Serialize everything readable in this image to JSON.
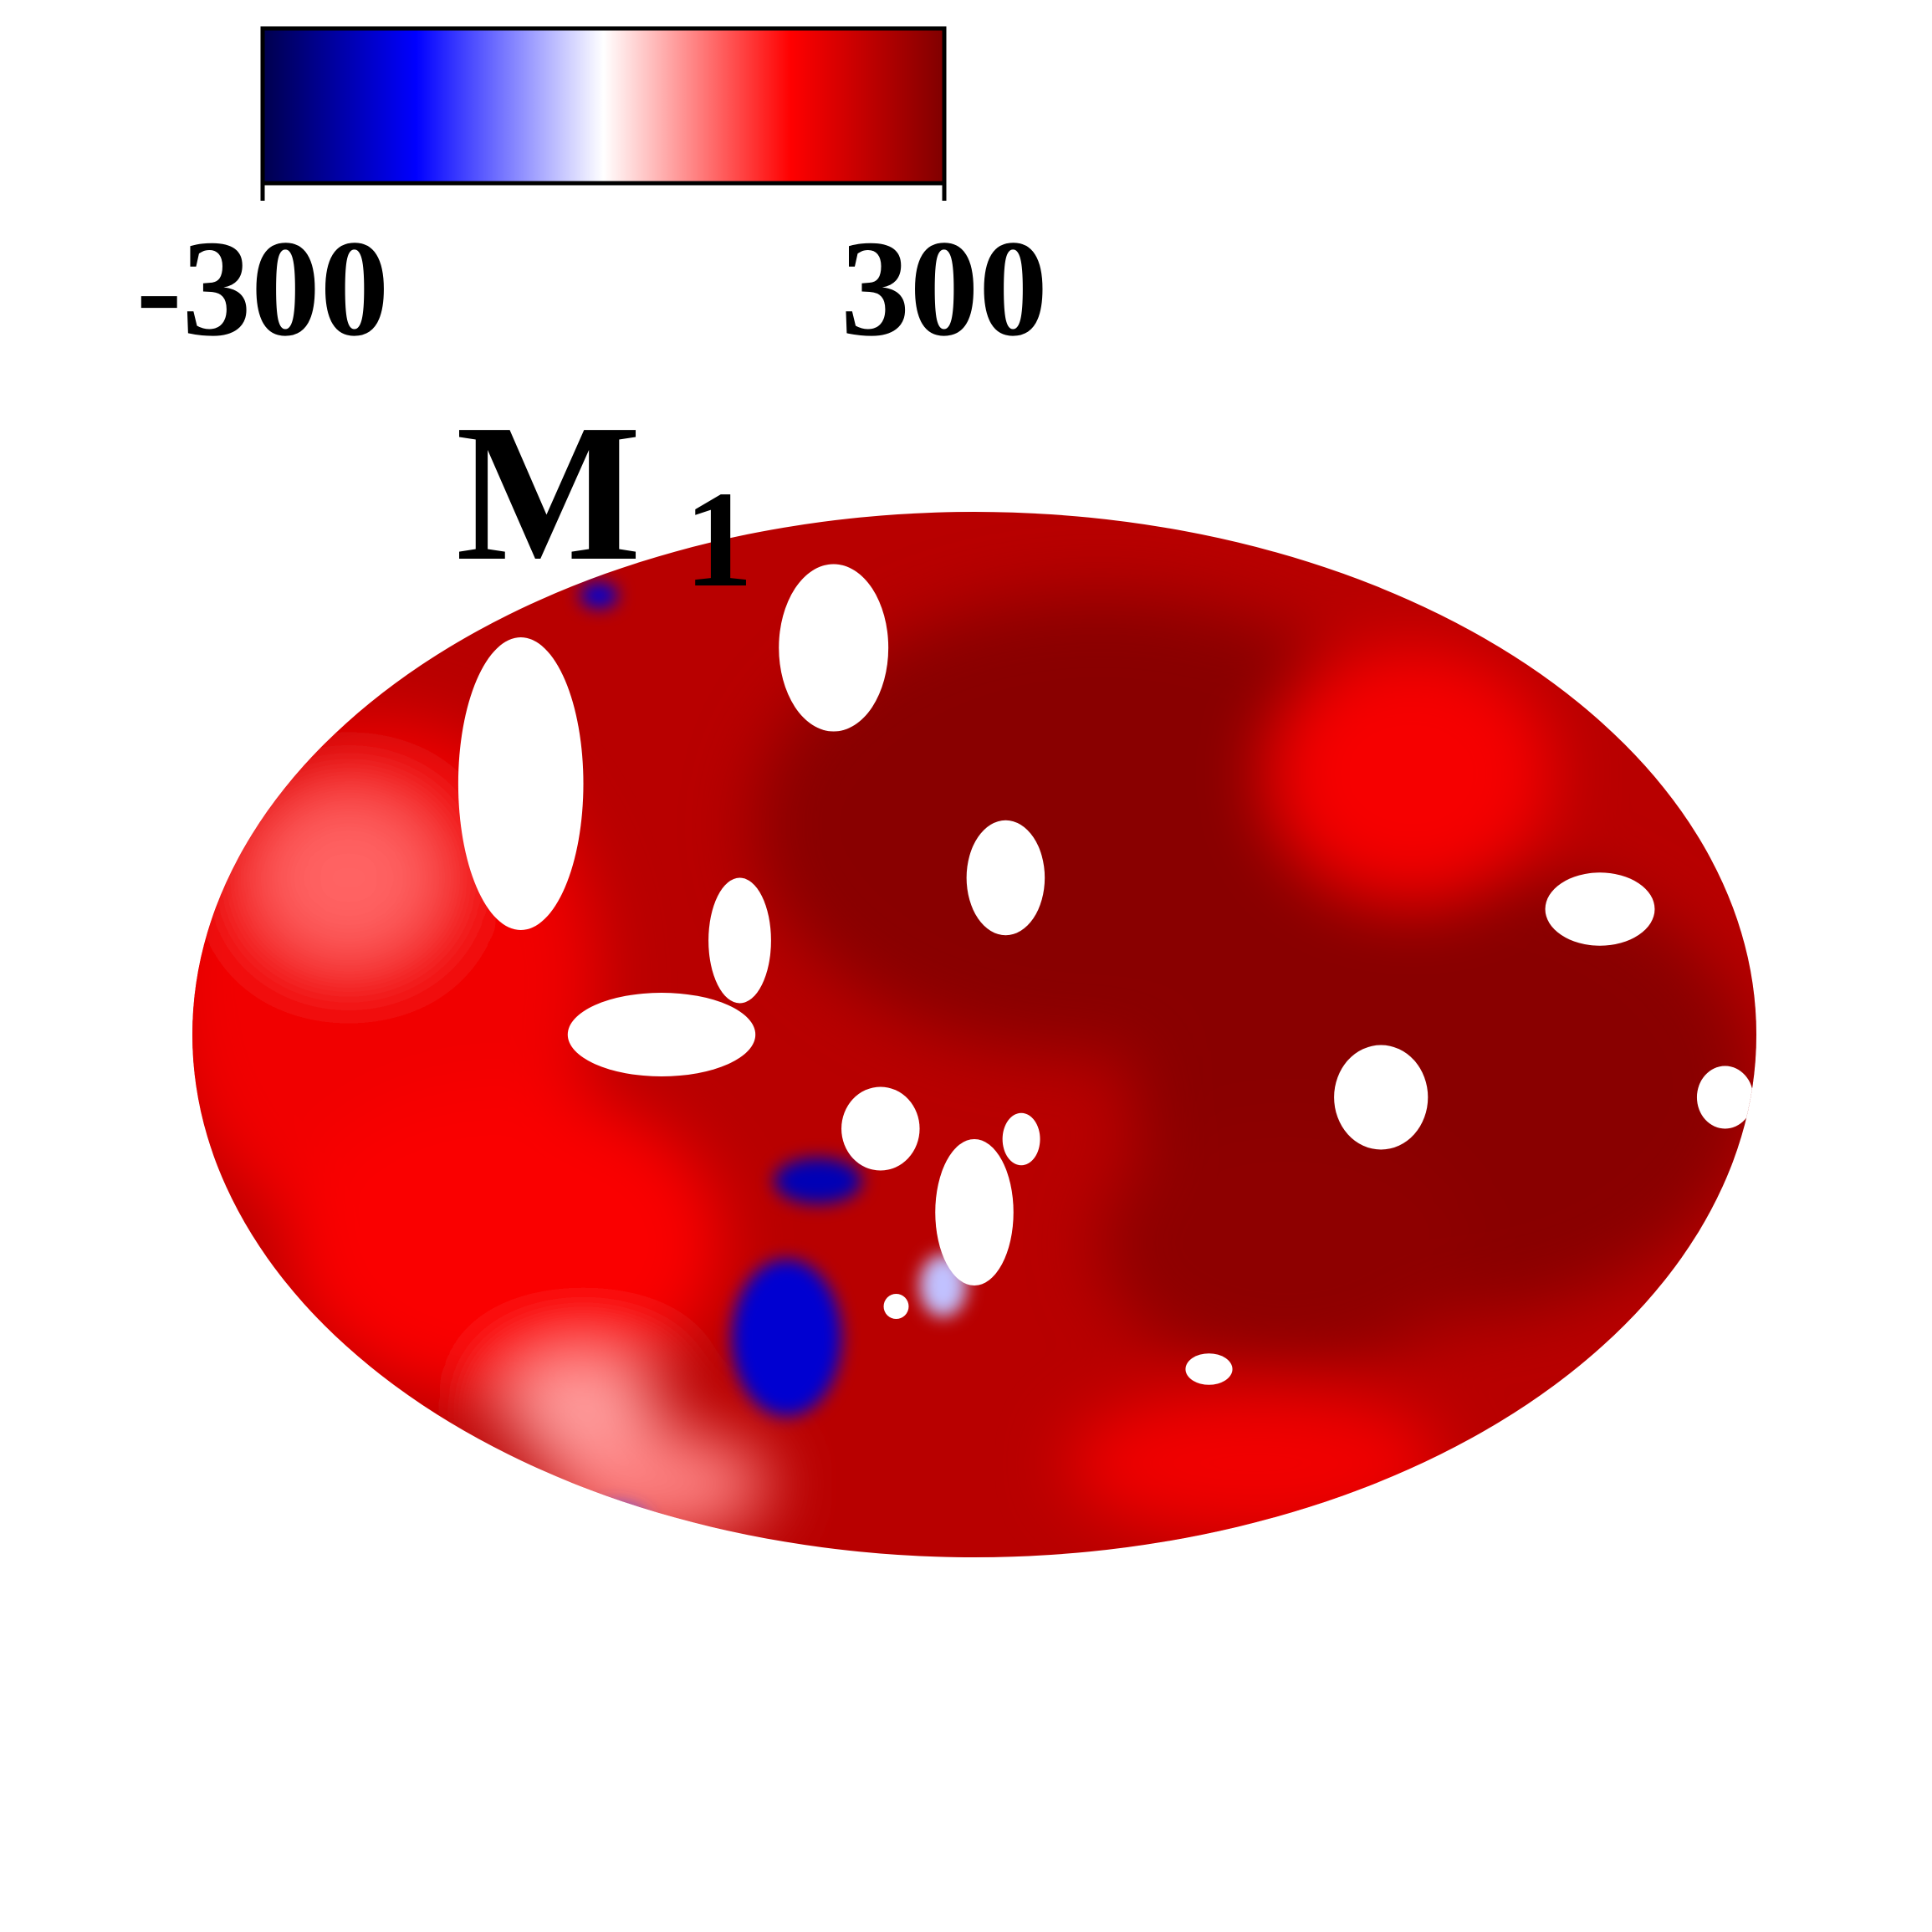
{
  "chart_data": {
    "type": "heatmap",
    "title": "",
    "panel_label": {
      "letter": "M",
      "subscript": "1"
    },
    "colorbar": {
      "min": -300,
      "max": 300,
      "min_label": "-300",
      "max_label": "300",
      "colormap": "seismic",
      "stops": [
        {
          "value": -300,
          "color": "#00004d"
        },
        {
          "value": -165,
          "color": "#0000ff"
        },
        {
          "value": 0,
          "color": "#ffffff"
        },
        {
          "value": 165,
          "color": "#ff0000"
        },
        {
          "value": 300,
          "color": "#800000"
        }
      ]
    },
    "map": {
      "shape": "ellipse",
      "background_value": 240,
      "masked_color": "#ffffff",
      "features": [
        {
          "kind": "hot",
          "value": 290,
          "u": 0.58,
          "v": 0.3,
          "ru": 0.22,
          "rv": 0.22
        },
        {
          "kind": "hot",
          "value": 290,
          "u": 0.8,
          "v": 0.55,
          "ru": 0.2,
          "rv": 0.22
        },
        {
          "kind": "hot",
          "value": 285,
          "u": 0.7,
          "v": 0.7,
          "ru": 0.12,
          "rv": 0.12
        },
        {
          "kind": "mid",
          "value": 180,
          "u": 0.12,
          "v": 0.45,
          "ru": 0.14,
          "rv": 0.25
        },
        {
          "kind": "mid",
          "value": 170,
          "u": 0.2,
          "v": 0.7,
          "ru": 0.14,
          "rv": 0.15
        },
        {
          "kind": "mid",
          "value": 175,
          "u": 0.78,
          "v": 0.25,
          "ru": 0.09,
          "rv": 0.12
        },
        {
          "kind": "mid",
          "value": 180,
          "u": 0.68,
          "v": 0.91,
          "ru": 0.12,
          "rv": 0.07
        },
        {
          "kind": "light",
          "value": 100,
          "u": 0.1,
          "v": 0.35,
          "ru": 0.06,
          "rv": 0.08
        },
        {
          "kind": "light",
          "value": 60,
          "u": 0.25,
          "v": 0.86,
          "ru": 0.05,
          "rv": 0.05
        },
        {
          "kind": "light",
          "value": 80,
          "u": 0.3,
          "v": 0.93,
          "ru": 0.07,
          "rv": 0.05
        },
        {
          "kind": "cold",
          "value": -200,
          "u": 0.38,
          "v": 0.79,
          "ru": 0.035,
          "rv": 0.075
        },
        {
          "kind": "cold",
          "value": -220,
          "u": 0.4,
          "v": 0.64,
          "ru": 0.028,
          "rv": 0.022
        },
        {
          "kind": "cold",
          "value": -40,
          "u": 0.48,
          "v": 0.74,
          "ru": 0.015,
          "rv": 0.03
        },
        {
          "kind": "cold",
          "value": -200,
          "u": 0.26,
          "v": 0.08,
          "ru": 0.012,
          "rv": 0.012
        },
        {
          "kind": "cold",
          "value": -120,
          "u": 0.27,
          "v": 0.97,
          "ru": 0.022,
          "rv": 0.02
        }
      ],
      "mask_regions": [
        {
          "u": 0.21,
          "v": 0.26,
          "ru": 0.04,
          "rv": 0.14
        },
        {
          "u": 0.41,
          "v": 0.13,
          "ru": 0.035,
          "rv": 0.08
        },
        {
          "u": 0.52,
          "v": 0.35,
          "ru": 0.025,
          "rv": 0.055
        },
        {
          "u": 0.3,
          "v": 0.5,
          "ru": 0.06,
          "rv": 0.04
        },
        {
          "u": 0.35,
          "v": 0.41,
          "ru": 0.02,
          "rv": 0.06
        },
        {
          "u": 0.44,
          "v": 0.59,
          "ru": 0.025,
          "rv": 0.04
        },
        {
          "u": 0.5,
          "v": 0.67,
          "ru": 0.025,
          "rv": 0.07
        },
        {
          "u": 0.53,
          "v": 0.6,
          "ru": 0.012,
          "rv": 0.025
        },
        {
          "u": 0.76,
          "v": 0.56,
          "ru": 0.03,
          "rv": 0.05
        },
        {
          "u": 0.9,
          "v": 0.38,
          "ru": 0.035,
          "rv": 0.035
        },
        {
          "u": 0.98,
          "v": 0.56,
          "ru": 0.018,
          "rv": 0.03
        },
        {
          "u": 0.65,
          "v": 0.82,
          "ru": 0.015,
          "rv": 0.015
        },
        {
          "u": 0.45,
          "v": 0.76,
          "ru": 0.008,
          "rv": 0.012
        }
      ]
    }
  }
}
